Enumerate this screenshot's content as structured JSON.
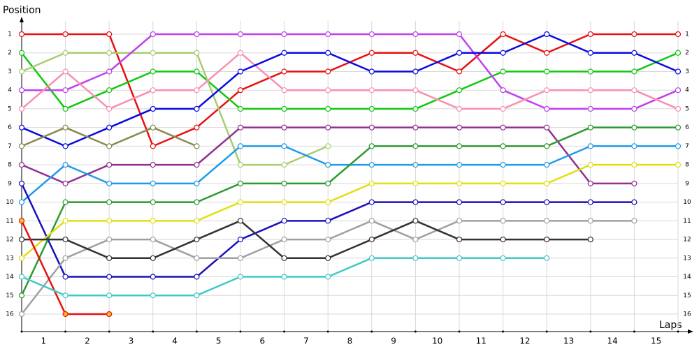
{
  "chart_data": {
    "type": "lap-chart",
    "y_label": "Position",
    "x_label": "Laps",
    "x": [
      0,
      1,
      2,
      3,
      4,
      5,
      6,
      7,
      8,
      9,
      10,
      11,
      12,
      13,
      14,
      15
    ],
    "xlim": [
      0,
      15
    ],
    "categories": [
      "1",
      "2",
      "3",
      "4",
      "5",
      "6",
      "7",
      "8",
      "9",
      "10",
      "11",
      "12",
      "13",
      "14",
      "15"
    ],
    "ylim": [
      1,
      16
    ],
    "y_inverted": true,
    "yticks": [
      1,
      2,
      3,
      4,
      5,
      6,
      7,
      8,
      9,
      10,
      11,
      12,
      13,
      14,
      15,
      16
    ],
    "grid": true,
    "series": [
      {
        "color": "#e81010",
        "values": [
          1,
          1,
          1,
          7,
          6,
          4,
          3,
          3,
          2,
          2,
          3,
          1,
          2,
          1,
          1,
          1
        ]
      },
      {
        "color": "#10c810",
        "values": [
          2,
          5,
          4,
          3,
          3,
          5,
          5,
          5,
          5,
          5,
          4,
          3,
          3,
          3,
          3,
          2
        ]
      },
      {
        "color": "#a8cc70",
        "values": [
          3,
          2,
          2,
          2,
          2,
          8,
          8,
          7,
          null,
          null,
          null,
          null,
          null,
          null,
          null,
          null
        ]
      },
      {
        "color": "#c040f0",
        "values": [
          4,
          4,
          3,
          1,
          1,
          1,
          1,
          1,
          1,
          1,
          1,
          4,
          5,
          5,
          5,
          4
        ]
      },
      {
        "color": "#f890b0",
        "values": [
          5,
          3,
          5,
          4,
          4,
          2,
          4,
          4,
          4,
          4,
          5,
          5,
          4,
          4,
          4,
          5
        ]
      },
      {
        "color": "#0a0ae0",
        "values": [
          6,
          7,
          6,
          5,
          5,
          3,
          2,
          2,
          3,
          3,
          2,
          2,
          1,
          2,
          2,
          3
        ]
      },
      {
        "color": "#888850",
        "values": [
          7,
          6,
          7,
          6,
          7,
          null,
          null,
          null,
          null,
          null,
          null,
          null,
          null,
          null,
          null,
          null
        ]
      },
      {
        "color": "#903090",
        "values": [
          8,
          9,
          8,
          8,
          8,
          6,
          6,
          6,
          6,
          6,
          6,
          6,
          6,
          9,
          9,
          null
        ]
      },
      {
        "color": "#1e9be8",
        "values": [
          10,
          8,
          9,
          9,
          9,
          7,
          7,
          8,
          8,
          8,
          8,
          8,
          8,
          7,
          7,
          7
        ]
      },
      {
        "color": "#1a10b8",
        "values": [
          9,
          14,
          14,
          14,
          14,
          12,
          11,
          11,
          10,
          10,
          10,
          10,
          10,
          10,
          10,
          null
        ]
      },
      {
        "color": "#2a9a30",
        "values": [
          15,
          10,
          10,
          10,
          10,
          9,
          9,
          9,
          7,
          7,
          7,
          7,
          7,
          6,
          6,
          6
        ]
      },
      {
        "color": "#e0e010",
        "values": [
          13,
          11,
          11,
          11,
          11,
          10,
          10,
          10,
          9,
          9,
          9,
          9,
          9,
          8,
          8,
          8
        ]
      },
      {
        "color": "#a0a0a0",
        "values": [
          16,
          13,
          12,
          12,
          13,
          13,
          12,
          12,
          11,
          12,
          11,
          11,
          11,
          11,
          11,
          null
        ]
      },
      {
        "color": "#333333",
        "values": [
          12,
          12,
          13,
          13,
          12,
          11,
          13,
          13,
          12,
          11,
          12,
          12,
          12,
          12,
          null,
          null
        ]
      },
      {
        "color": "#e81010",
        "marker_fill": "#ffc020",
        "values": [
          11,
          16,
          16,
          null,
          null,
          null,
          null,
          null,
          null,
          null,
          null,
          null,
          null,
          null,
          null,
          null
        ]
      },
      {
        "color": "#40c8c8",
        "values": [
          14,
          15,
          15,
          15,
          15,
          14,
          14,
          14,
          13,
          13,
          13,
          13,
          13,
          null,
          null,
          null
        ]
      }
    ]
  }
}
